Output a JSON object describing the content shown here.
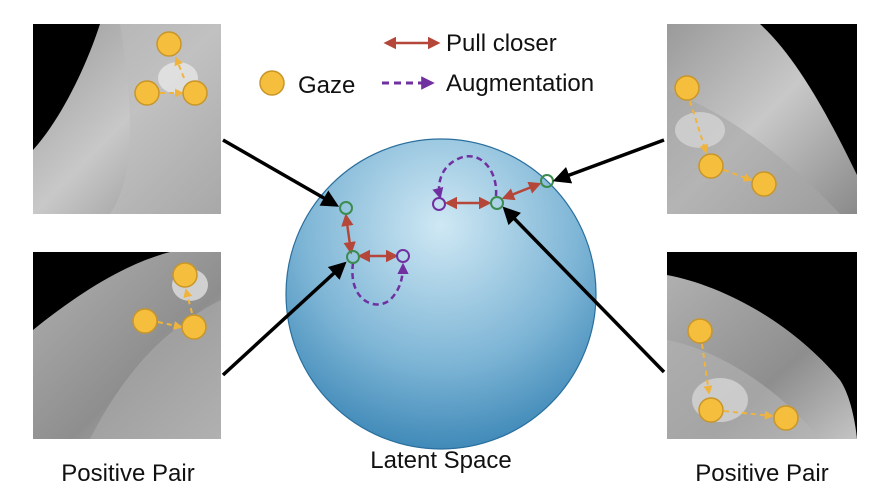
{
  "legend": {
    "gaze_label": "Gaze",
    "pull_label": "Pull closer",
    "augmentation_label": "Augmentation"
  },
  "captions": {
    "left": "Positive Pair",
    "center": "Latent Space",
    "right": "Positive Pair"
  },
  "colors": {
    "gaze_fill": "#F5BE3C",
    "gaze_stroke": "#C8962A",
    "gaze_arrow": "#F0B43C",
    "pull_arrow": "#B5473A",
    "augmentation_arrow": "#7030A0",
    "embedding_green": "#3C8C50",
    "embedding_purple": "#7030A0",
    "pointer_arrow": "#000000",
    "sphere_light": "#CFE8F4",
    "sphere_dark": "#2E7DB0"
  }
}
